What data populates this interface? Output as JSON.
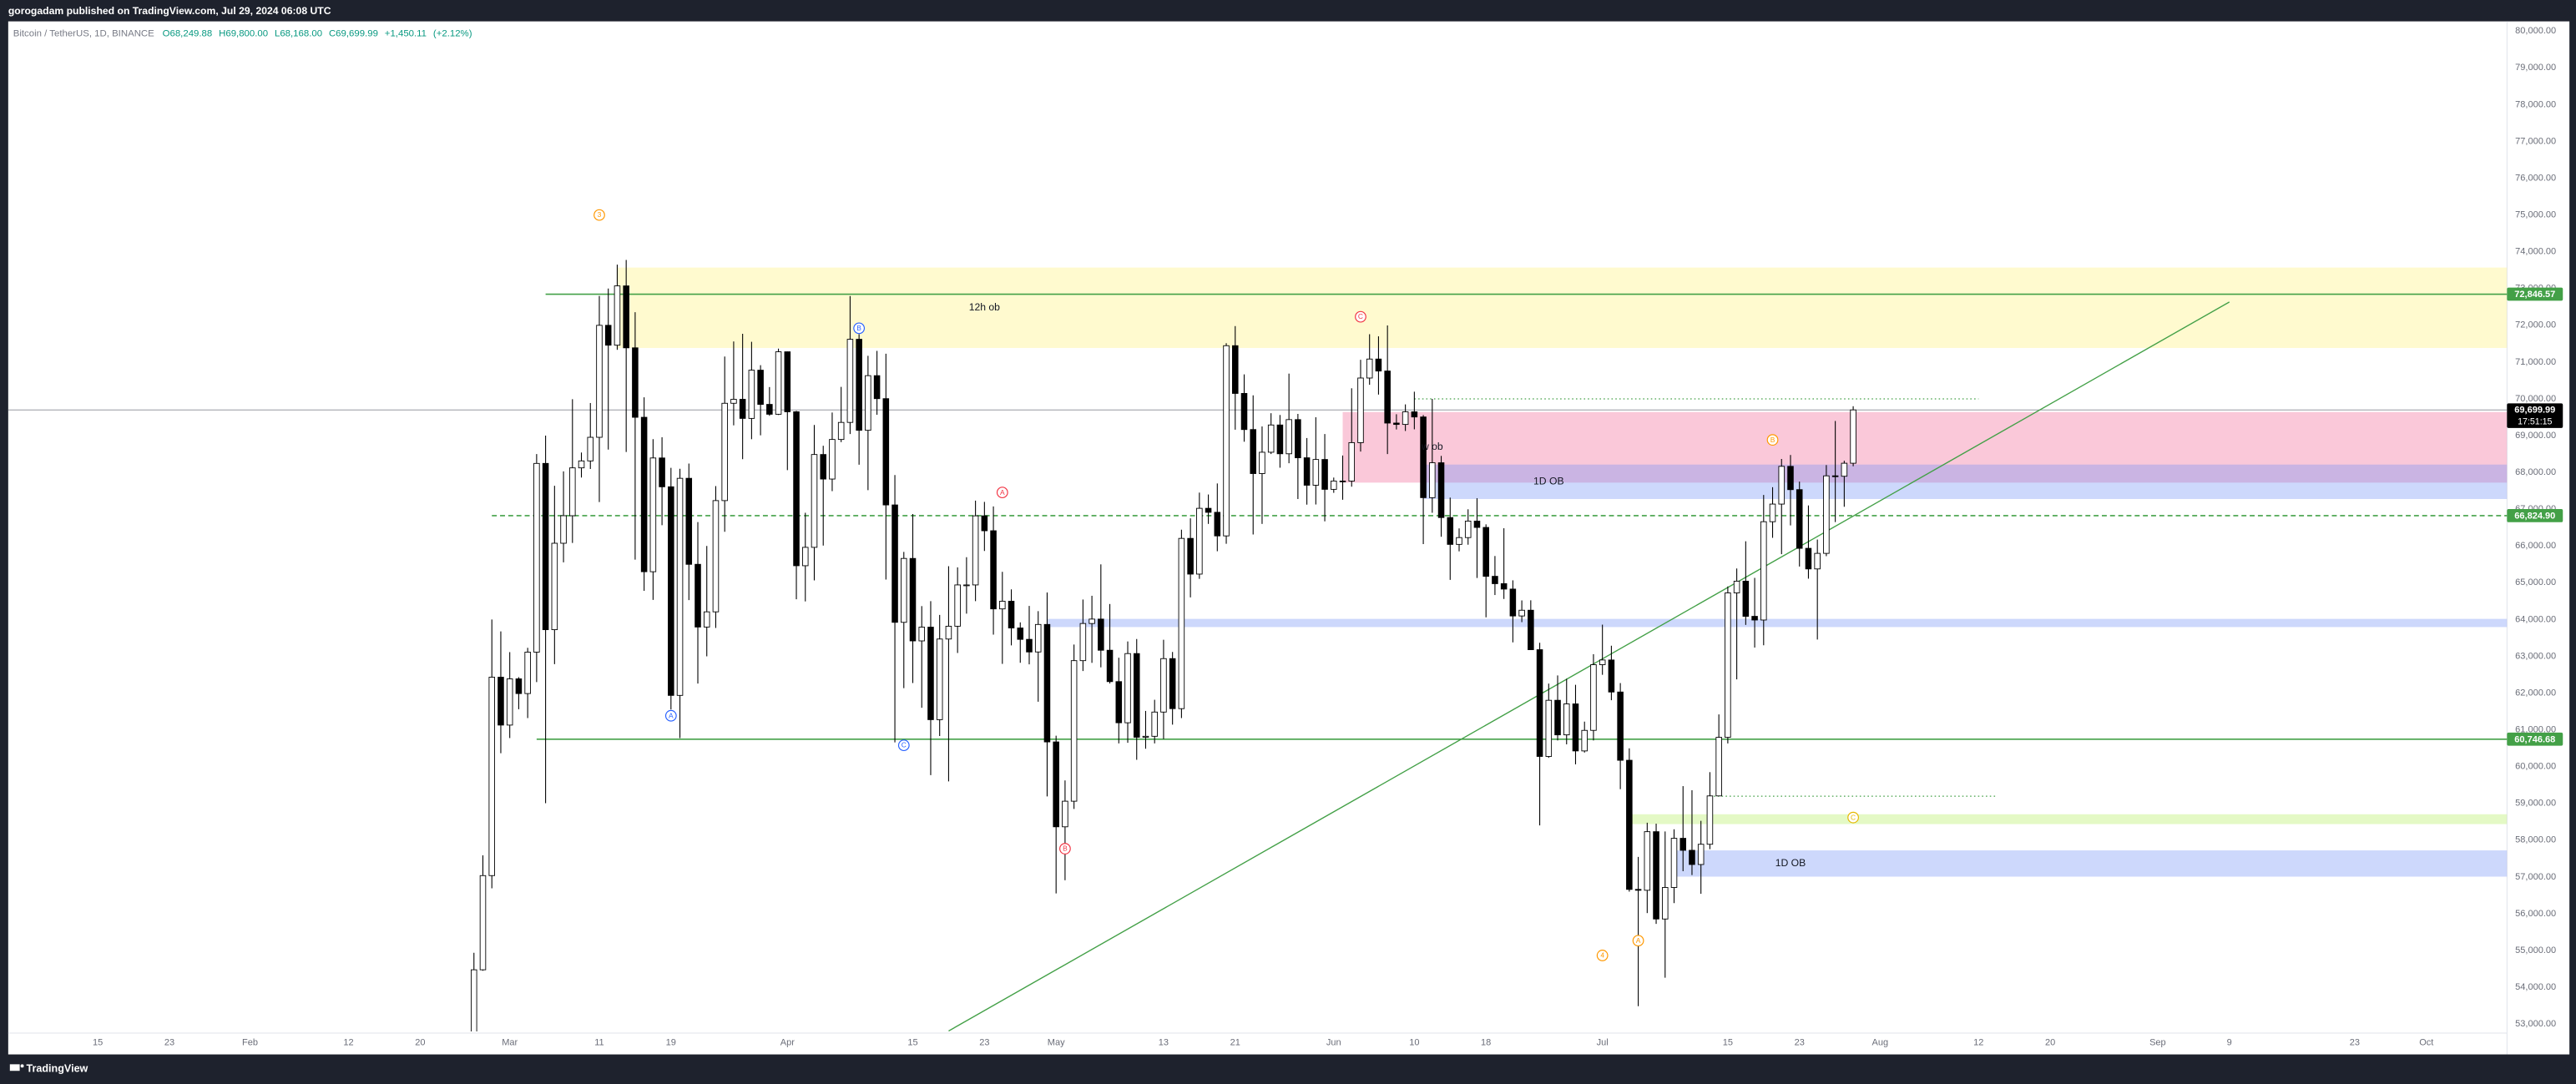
{
  "header": "gorogadam published on TradingView.com, Jul 29, 2024 06:08 UTC",
  "footer_brand": "TradingView",
  "chart_data": {
    "type": "candlestick",
    "title": "Bitcoin / TetherUS, 1D, BINANCE",
    "readout": [
      {
        "value": 68249.88,
        "label": "O68,249.88"
      },
      {
        "value": 69800,
        "label": "H69,800.00"
      },
      {
        "value": 68168,
        "label": "L68,168.00"
      },
      {
        "value": 69699.99,
        "label": "C69,699.99"
      },
      {
        "value": 1450.11,
        "label": "+1,450.11"
      },
      {
        "value": 2.12,
        "label": "(+2.12%)"
      }
    ],
    "up_color": "#ffffff",
    "down_color": "#000000",
    "wick_color": "#000000",
    "grid": false,
    "xlim": [
      "2024-01-05",
      "2024-10-10"
    ],
    "ylim": [
      52800,
      80220
    ],
    "x": [
      "2024-02-26",
      "2024-02-27",
      "2024-02-28",
      "2024-02-29",
      "2024-03-01",
      "2024-03-02",
      "2024-03-03",
      "2024-03-04",
      "2024-03-05",
      "2024-03-06",
      "2024-03-07",
      "2024-03-08",
      "2024-03-09",
      "2024-03-10",
      "2024-03-11",
      "2024-03-12",
      "2024-03-13",
      "2024-03-14",
      "2024-03-15",
      "2024-03-16",
      "2024-03-17",
      "2024-03-18",
      "2024-03-19",
      "2024-03-20",
      "2024-03-21",
      "2024-03-22",
      "2024-03-23",
      "2024-03-24",
      "2024-03-25",
      "2024-03-26",
      "2024-03-27",
      "2024-03-28",
      "2024-03-29",
      "2024-03-30",
      "2024-03-31",
      "2024-04-01",
      "2024-04-02",
      "2024-04-03",
      "2024-04-04",
      "2024-04-05",
      "2024-04-06",
      "2024-04-07",
      "2024-04-08",
      "2024-04-09",
      "2024-04-10",
      "2024-04-11",
      "2024-04-12",
      "2024-04-13",
      "2024-04-14",
      "2024-04-15",
      "2024-04-16",
      "2024-04-17",
      "2024-04-18",
      "2024-04-19",
      "2024-04-20",
      "2024-04-21",
      "2024-04-22",
      "2024-04-23",
      "2024-04-24",
      "2024-04-25",
      "2024-04-26",
      "2024-04-27",
      "2024-04-28",
      "2024-04-29",
      "2024-04-30",
      "2024-05-01",
      "2024-05-02",
      "2024-05-03",
      "2024-05-04",
      "2024-05-05",
      "2024-05-06",
      "2024-05-07",
      "2024-05-08",
      "2024-05-09",
      "2024-05-10",
      "2024-05-11",
      "2024-05-12",
      "2024-05-13",
      "2024-05-14",
      "2024-05-15",
      "2024-05-16",
      "2024-05-17",
      "2024-05-18",
      "2024-05-19",
      "2024-05-20",
      "2024-05-21",
      "2024-05-22",
      "2024-05-23",
      "2024-05-24",
      "2024-05-25",
      "2024-05-26",
      "2024-05-27",
      "2024-05-28",
      "2024-05-29",
      "2024-05-30",
      "2024-05-31",
      "2024-06-01",
      "2024-06-02",
      "2024-06-03",
      "2024-06-04",
      "2024-06-05",
      "2024-06-06",
      "2024-06-07",
      "2024-06-08",
      "2024-06-09",
      "2024-06-10",
      "2024-06-11",
      "2024-06-12",
      "2024-06-13",
      "2024-06-14",
      "2024-06-15",
      "2024-06-16",
      "2024-06-17",
      "2024-06-18",
      "2024-06-19",
      "2024-06-20",
      "2024-06-21",
      "2024-06-22",
      "2024-06-23",
      "2024-06-24",
      "2024-06-25",
      "2024-06-26",
      "2024-06-27",
      "2024-06-28",
      "2024-06-29",
      "2024-06-30",
      "2024-07-01",
      "2024-07-02",
      "2024-07-03",
      "2024-07-04",
      "2024-07-05",
      "2024-07-06",
      "2024-07-07",
      "2024-07-08",
      "2024-07-09",
      "2024-07-10",
      "2024-07-11",
      "2024-07-12",
      "2024-07-13",
      "2024-07-14",
      "2024-07-15",
      "2024-07-16",
      "2024-07-17",
      "2024-07-18",
      "2024-07-19",
      "2024-07-20",
      "2024-07-21",
      "2024-07-22",
      "2024-07-23",
      "2024-07-24",
      "2024-07-25",
      "2024-07-26",
      "2024-07-27",
      "2024-07-28",
      "2024-07-29"
    ],
    "open": [
      51730,
      54476,
      57037,
      62432,
      61130,
      62387,
      61987,
      63113,
      68245,
      63724,
      66074,
      66823,
      68124,
      68313,
      68955,
      72000,
      71460,
      73072,
      71388,
      69499,
      65300,
      68393,
      67609,
      61937,
      67840,
      65501,
      63796,
      64209,
      67234,
      69880,
      69988,
      69469,
      70780,
      69850,
      69582,
      71280,
      69649,
      65463,
      65963,
      68487,
      67820,
      68896,
      69360,
      71620,
      69146,
      70631,
      70006,
      67116,
      63924,
      65661,
      63419,
      63793,
      61277,
      63470,
      63818,
      64941,
      64941,
      66819,
      66414,
      64289,
      64498,
      63770,
      63461,
      63118,
      63866,
      60672,
      58364,
      59060,
      62882,
      63892,
      64012,
      63165,
      62312,
      61193,
      63074,
      60799,
      60825,
      61484,
      62937,
      61577,
      66206,
      65235,
      67024,
      66915,
      66274,
      71446,
      70148,
      69166,
      67969,
      68549,
      69290,
      68507,
      69436,
      68398,
      67652,
      68352,
      67540,
      67766,
      67765,
      68810,
      70567,
      71083,
      70757,
      69342,
      69305,
      69648,
      69508,
      67314,
      68263,
      66773,
      66043,
      66228,
      66677,
      66504,
      65175,
      64975,
      64828,
      64097,
      64253,
      63180,
      60277,
      61804,
      60864,
      61706,
      60427,
      60986,
      62772,
      62900,
      62029,
      60173,
      56662,
      56638,
      58231,
      55857,
      56714,
      58051,
      57725,
      57339,
      57889,
      59204,
      60797,
      64724,
      65043,
      64087,
      63987,
      66660,
      67139,
      68165,
      67532,
      65936,
      65376,
      65799,
      67907,
      67896,
      68249.88
    ],
    "high": [
      54938,
      57588,
      64000,
      63676,
      63114,
      62433,
      63231,
      68499,
      69000,
      67637,
      68029,
      69990,
      68541,
      69887,
      72800,
      73000,
      73650,
      73777,
      72357,
      70043,
      68904,
      68956,
      68124,
      68100,
      68240,
      66650,
      65999,
      67628,
      71150,
      71561,
      71769,
      71552,
      70916,
      70321,
      71366,
      71288,
      69674,
      66903,
      69291,
      68725,
      69629,
      70326,
      72797,
      71758,
      71172,
      71305,
      71227,
      67929,
      65840,
      66867,
      64365,
      64499,
      64125,
      65450,
      65419,
      65695,
      67233,
      67199,
      67075,
      65297,
      64820,
      63923,
      64370,
      64228,
      64734,
      60841,
      59625,
      63320,
      64544,
      64646,
      65500,
      64422,
      62962,
      63404,
      63470,
      61515,
      61818,
      63450,
      63118,
      66444,
      66752,
      67451,
      67400,
      67700,
      71515,
      71979,
      70666,
      70096,
      69250,
      69610,
      69562,
      70687,
      69591,
      68935,
      69500,
      69044,
      67860,
      68460,
      70288,
      71063,
      71758,
      71700,
      71997,
      69582,
      69850,
      70195,
      69560,
      69999,
      68449,
      67315,
      66478,
      66998,
      67298,
      66588,
      65727,
      66482,
      65066,
      64520,
      64523,
      63369,
      62258,
      62480,
      62389,
      62225,
      61224,
      63058,
      63861,
      63288,
      62272,
      60498,
      57546,
      58475,
      58449,
      58236,
      58296,
      59470,
      59359,
      58526,
      59850,
      61420,
      64900,
      65388,
      66128,
      65133,
      67386,
      67598,
      68366,
      68474,
      67750,
      67102,
      66175,
      68200,
      69399,
      68318,
      69800
    ],
    "low": [
      50931,
      54450,
      56691,
      60364,
      60777,
      61561,
      61320,
      62300,
      59005,
      62786,
      65555,
      66082,
      67861,
      68094,
      67194,
      68620,
      71334,
      68555,
      65630,
      64780,
      64533,
      66565,
      61555,
      60775,
      64529,
      62260,
      63000,
      63772,
      66385,
      69280,
      68359,
      68903,
      69009,
      69540,
      69562,
      68062,
      64550,
      64493,
      65064,
      66011,
      67491,
      68824,
      69043,
      68210,
      67518,
      69567,
      65086,
      60660,
      62134,
      62274,
      61600,
      59768,
      60833,
      59600,
      63090,
      64160,
      64500,
      65864,
      63589,
      62794,
      63297,
      62824,
      62781,
      61765,
      59191,
      56552,
      56911,
      58849,
      62600,
      62822,
      62700,
      62261,
      60632,
      60648,
      60187,
      60487,
      60632,
      60749,
      61142,
      61319,
      64602,
      65106,
      66600,
      65857,
      66060,
      69162,
      68835,
      66312,
      66600,
      68500,
      68128,
      68250,
      67277,
      67124,
      67128,
      66670,
      67445,
      67257,
      67612,
      68567,
      70383,
      70117,
      68500,
      69168,
      69127,
      69172,
      66051,
      66902,
      66251,
      65078,
      65854,
      66034,
      65130,
      64060,
      64666,
      64559,
      63379,
      63929,
      63180,
      58402,
      60239,
      60712,
      60606,
      60063,
      60383,
      60712,
      62497,
      61806,
      59387,
      56600,
      53485,
      56018,
      55724,
      54260,
      56289,
      57157,
      57052,
      56542,
      57756,
      59200,
      60632,
      62373,
      63854,
      63238,
      63300,
      66222,
      65777,
      66559,
      65441,
      65111,
      63456,
      65722,
      66650,
      67066,
      68168
    ],
    "close": [
      54476,
      57037,
      62432,
      61130,
      62387,
      61987,
      63113,
      68245,
      63724,
      66074,
      66823,
      68124,
      68313,
      68955,
      72000,
      71460,
      73072,
      71388,
      69499,
      65300,
      68393,
      67609,
      61937,
      67840,
      65501,
      63796,
      64209,
      67234,
      69880,
      69988,
      69469,
      70780,
      69850,
      69582,
      71280,
      69649,
      65463,
      65963,
      68487,
      67820,
      68896,
      69360,
      71620,
      69146,
      70631,
      70006,
      67116,
      63924,
      65661,
      63419,
      63793,
      61277,
      63470,
      63818,
      64941,
      64941,
      66819,
      66414,
      64289,
      64498,
      63770,
      63461,
      63118,
      63866,
      60672,
      58364,
      59060,
      62882,
      63892,
      64012,
      63165,
      62312,
      61193,
      63074,
      60799,
      60825,
      61484,
      62937,
      61577,
      66206,
      65235,
      67024,
      66915,
      66274,
      71446,
      70148,
      69166,
      67969,
      68549,
      69290,
      68507,
      69436,
      68398,
      67652,
      68352,
      67540,
      67766,
      67765,
      68810,
      70567,
      71083,
      70757,
      69342,
      69305,
      69648,
      69508,
      67314,
      68263,
      66773,
      66043,
      66228,
      66677,
      66504,
      65175,
      64975,
      64828,
      64097,
      64253,
      63180,
      60277,
      61804,
      60864,
      61706,
      60427,
      60986,
      62772,
      62900,
      62029,
      60173,
      56662,
      56638,
      58231,
      55857,
      56714,
      58051,
      57725,
      57339,
      57889,
      59204,
      60797,
      64724,
      65043,
      64087,
      63987,
      66660,
      67139,
      68165,
      67532,
      65936,
      65376,
      65799,
      67907,
      67896,
      68249.88,
      69699.99
    ],
    "yticks": [
      {
        "value": 53000,
        "label": "53,000.00"
      },
      {
        "value": 54000,
        "label": "54,000.00"
      },
      {
        "value": 55000,
        "label": "55,000.00"
      },
      {
        "value": 56000,
        "label": "56,000.00"
      },
      {
        "value": 57000,
        "label": "57,000.00"
      },
      {
        "value": 58000,
        "label": "58,000.00"
      },
      {
        "value": 59000,
        "label": "59,000.00"
      },
      {
        "value": 60000,
        "label": "60,000.00"
      },
      {
        "value": 61000,
        "label": "61,000.00"
      },
      {
        "value": 62000,
        "label": "62,000.00"
      },
      {
        "value": 63000,
        "label": "63,000.00"
      },
      {
        "value": 64000,
        "label": "64,000.00"
      },
      {
        "value": 65000,
        "label": "65,000.00"
      },
      {
        "value": 66000,
        "label": "66,000.00"
      },
      {
        "value": 67000,
        "label": "67,000.00"
      },
      {
        "value": 68000,
        "label": "68,000.00"
      },
      {
        "value": 69000,
        "label": "69,000.00"
      },
      {
        "value": 70000,
        "label": "70,000.00"
      },
      {
        "value": 71000,
        "label": "71,000.00"
      },
      {
        "value": 72000,
        "label": "72,000.00"
      },
      {
        "value": 73000,
        "label": "73,000.00"
      },
      {
        "value": 74000,
        "label": "74,000.00"
      },
      {
        "value": 75000,
        "label": "75,000.00"
      },
      {
        "value": 76000,
        "label": "76,000.00"
      },
      {
        "value": 77000,
        "label": "77,000.00"
      },
      {
        "value": 78000,
        "label": "78,000.00"
      },
      {
        "value": 79000,
        "label": "79,000.00"
      },
      {
        "value": 80000,
        "label": "80,000.00"
      }
    ],
    "xticks": [
      {
        "value": "2024-01-15",
        "label": "15"
      },
      {
        "value": "2024-01-23",
        "label": "23"
      },
      {
        "value": "2024-02-01",
        "label": "Feb"
      },
      {
        "value": "2024-02-12",
        "label": "12"
      },
      {
        "value": "2024-02-20",
        "label": "20"
      },
      {
        "value": "2024-03-01",
        "label": "Mar"
      },
      {
        "value": "2024-03-11",
        "label": "11"
      },
      {
        "value": "2024-03-19",
        "label": "19"
      },
      {
        "value": "2024-04-01",
        "label": "Apr"
      },
      {
        "value": "2024-04-15",
        "label": "15"
      },
      {
        "value": "2024-04-23",
        "label": "23"
      },
      {
        "value": "2024-05-01",
        "label": "May"
      },
      {
        "value": "2024-05-13",
        "label": "13"
      },
      {
        "value": "2024-05-21",
        "label": "21"
      },
      {
        "value": "2024-06-01",
        "label": "Jun"
      },
      {
        "value": "2024-06-10",
        "label": "10"
      },
      {
        "value": "2024-06-18",
        "label": "18"
      },
      {
        "value": "2024-07-01",
        "label": "Jul"
      },
      {
        "value": "2024-07-15",
        "label": "15"
      },
      {
        "value": "2024-07-23",
        "label": "23"
      },
      {
        "value": "2024-08-01",
        "label": "Aug"
      },
      {
        "value": "2024-08-12",
        "label": "12"
      },
      {
        "value": "2024-08-20",
        "label": "20"
      },
      {
        "value": "2024-09-01",
        "label": "Sep"
      },
      {
        "value": "2024-09-09",
        "label": "9"
      },
      {
        "value": "2024-09-23",
        "label": "23"
      },
      {
        "value": "2024-10-01",
        "label": "Oct"
      }
    ],
    "zones": [
      {
        "label": "12h ob",
        "label_date": "2024-04-23",
        "from": "2024-03-13",
        "top": 73571,
        "bottom": 71384,
        "color": "#fff176"
      },
      {
        "label": "w ob",
        "label_date": "2024-06-12",
        "from": "2024-06-02",
        "top": 69643,
        "bottom": 67723,
        "color": "#f06292"
      },
      {
        "label": "1D OB",
        "label_date": "2024-06-25",
        "from": "2024-06-11",
        "top": 68214,
        "bottom": 67277,
        "color": "#6f8ff7"
      },
      {
        "from": "2024-04-30",
        "top": 64018,
        "bottom": 63795,
        "color": "#6f8ff7"
      },
      {
        "from": "2024-07-04",
        "top": 58705,
        "bottom": 58437,
        "color": "#b2ee5a"
      },
      {
        "label": "1D OB",
        "label_date": "2024-07-22",
        "from": "2024-07-09",
        "top": 57723,
        "bottom": 57009,
        "color": "#6f8ff7"
      }
    ],
    "price_lines": [
      {
        "value": 72846.57,
        "label": "72,846.57",
        "from": "2024-03-05",
        "style": "solid",
        "color": "#43a047"
      },
      {
        "value": 66824.9,
        "label": "66,824.90",
        "from": "2024-02-28",
        "style": "dashed",
        "color": "#43a047"
      },
      {
        "value": 60746.68,
        "label": "60,746.68",
        "from": "2024-03-04",
        "style": "solid",
        "color": "#43a047"
      }
    ],
    "dotted_lines": [
      {
        "value": 70000,
        "from": "2024-06-10",
        "to": "2024-08-12",
        "color": "#43a047"
      },
      {
        "value": 59196,
        "from": "2024-07-13",
        "to": "2024-08-14",
        "color": "#43a047"
      }
    ],
    "trendline": {
      "from_date": "2024-04-19",
      "from_price": 52812,
      "to_date": "2024-09-09",
      "to_price": 72634,
      "color": "#43a047"
    },
    "current_price": {
      "value": 69699.99,
      "label": "69,699.99",
      "countdown": "17:51:15"
    },
    "wave_labels": [
      {
        "text": "3",
        "date": "2024-03-11",
        "price": 75000,
        "color": "#ff9800"
      },
      {
        "text": "B",
        "date": "2024-04-09",
        "price": 71920,
        "color": "#2962ff"
      },
      {
        "text": "A",
        "date": "2024-03-19",
        "price": 61384,
        "color": "#2962ff"
      },
      {
        "text": "C",
        "date": "2024-04-14",
        "price": 60580,
        "color": "#2962ff"
      },
      {
        "text": "A",
        "date": "2024-04-25",
        "price": 67455,
        "color": "#f23645"
      },
      {
        "text": "B",
        "date": "2024-05-02",
        "price": 57768,
        "color": "#f23645"
      },
      {
        "text": "C",
        "date": "2024-06-04",
        "price": 72232,
        "color": "#f23645"
      },
      {
        "text": "4",
        "date": "2024-07-01",
        "price": 54866,
        "color": "#ff9800"
      },
      {
        "text": "A",
        "date": "2024-07-05",
        "price": 55268,
        "color": "#ff9800"
      },
      {
        "text": "B",
        "date": "2024-07-20",
        "price": 68884,
        "color": "#ff9800"
      },
      {
        "text": "C",
        "date": "2024-07-29",
        "price": 58616,
        "color": "#e6b800"
      }
    ]
  }
}
